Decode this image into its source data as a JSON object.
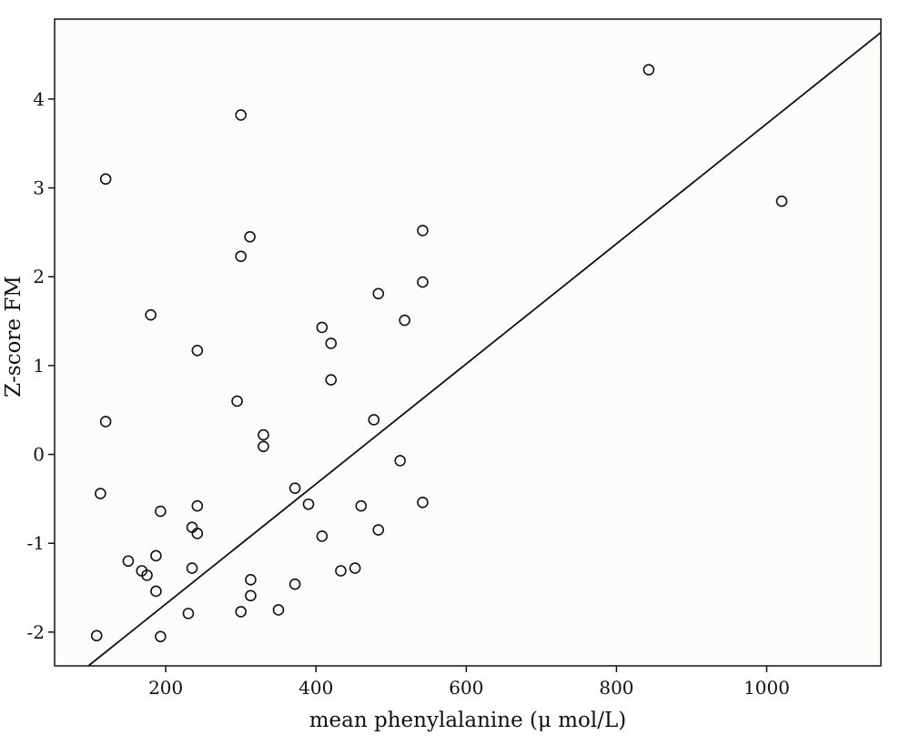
{
  "chart_data": {
    "type": "scatter",
    "xlabel": "mean phenylalanine  (μ mol/L)",
    "ylabel": "Z-score FM",
    "xlim": [
      52,
      1152
    ],
    "ylim": [
      -2.38,
      4.9
    ],
    "xticks": [
      200,
      400,
      600,
      800,
      1000
    ],
    "yticks": [
      -2,
      -1,
      0,
      1,
      2,
      3,
      4
    ],
    "grid": false,
    "legend": "none",
    "points": [
      {
        "x": 843,
        "y": 4.33
      },
      {
        "x": 300,
        "y": 3.82
      },
      {
        "x": 120,
        "y": 3.1
      },
      {
        "x": 1020,
        "y": 2.85
      },
      {
        "x": 542,
        "y": 2.52
      },
      {
        "x": 312,
        "y": 2.45
      },
      {
        "x": 300,
        "y": 2.23
      },
      {
        "x": 542,
        "y": 1.94
      },
      {
        "x": 483,
        "y": 1.81
      },
      {
        "x": 180,
        "y": 1.57
      },
      {
        "x": 518,
        "y": 1.51
      },
      {
        "x": 408,
        "y": 1.43
      },
      {
        "x": 420,
        "y": 1.25
      },
      {
        "x": 242,
        "y": 1.17
      },
      {
        "x": 420,
        "y": 0.84
      },
      {
        "x": 295,
        "y": 0.6
      },
      {
        "x": 477,
        "y": 0.39
      },
      {
        "x": 120,
        "y": 0.37
      },
      {
        "x": 330,
        "y": 0.22
      },
      {
        "x": 330,
        "y": 0.09
      },
      {
        "x": 512,
        "y": -0.07
      },
      {
        "x": 372,
        "y": -0.38
      },
      {
        "x": 113,
        "y": -0.44
      },
      {
        "x": 542,
        "y": -0.54
      },
      {
        "x": 390,
        "y": -0.56
      },
      {
        "x": 460,
        "y": -0.58
      },
      {
        "x": 242,
        "y": -0.58
      },
      {
        "x": 193,
        "y": -0.64
      },
      {
        "x": 235,
        "y": -0.82
      },
      {
        "x": 483,
        "y": -0.85
      },
      {
        "x": 242,
        "y": -0.89
      },
      {
        "x": 408,
        "y": -0.92
      },
      {
        "x": 187,
        "y": -1.14
      },
      {
        "x": 150,
        "y": -1.2
      },
      {
        "x": 168,
        "y": -1.31
      },
      {
        "x": 175,
        "y": -1.36
      },
      {
        "x": 235,
        "y": -1.28
      },
      {
        "x": 452,
        "y": -1.28
      },
      {
        "x": 433,
        "y": -1.31
      },
      {
        "x": 313,
        "y": -1.41
      },
      {
        "x": 372,
        "y": -1.46
      },
      {
        "x": 187,
        "y": -1.54
      },
      {
        "x": 313,
        "y": -1.59
      },
      {
        "x": 350,
        "y": -1.75
      },
      {
        "x": 300,
        "y": -1.77
      },
      {
        "x": 230,
        "y": -1.79
      },
      {
        "x": 108,
        "y": -2.04
      },
      {
        "x": 193,
        "y": -2.05
      }
    ],
    "fit_line": {
      "x": [
        97,
        1152
      ],
      "y": [
        -2.38,
        4.75
      ]
    }
  }
}
